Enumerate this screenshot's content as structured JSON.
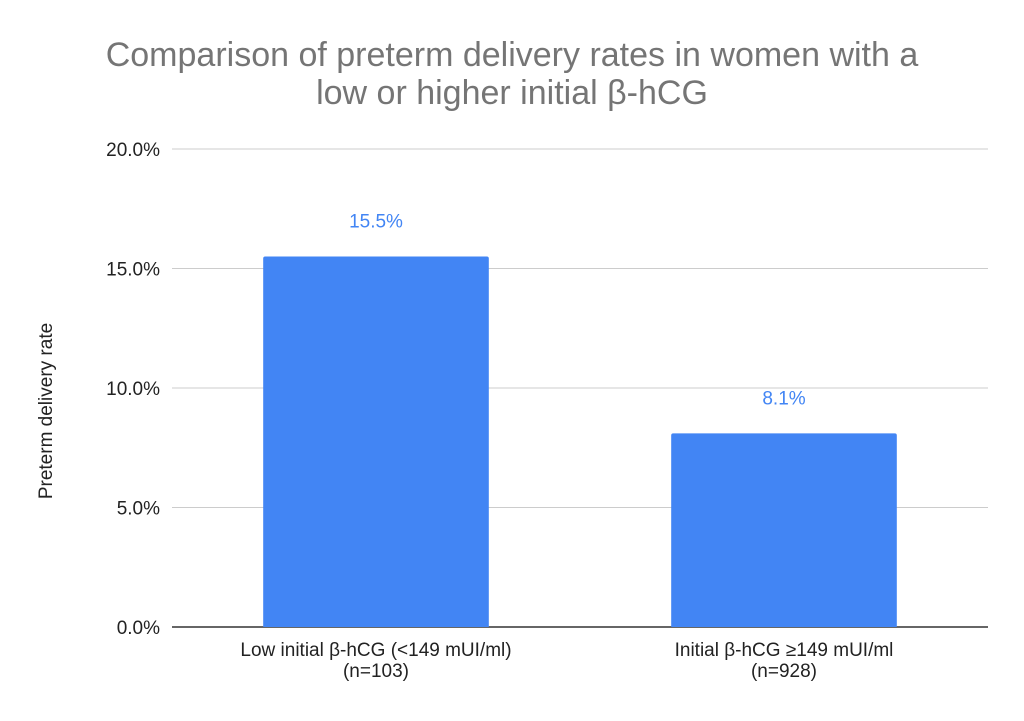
{
  "chart_data": {
    "type": "bar",
    "title_lines": [
      "Comparison of preterm delivery rates in women with a",
      "low or higher initial β-hCG"
    ],
    "xlabel": "",
    "ylabel": "Preterm delivery rate",
    "ylim": [
      0,
      20
    ],
    "y_ticks": [
      "0.0%",
      "5.0%",
      "10.0%",
      "15.0%",
      "20.0%"
    ],
    "y_tick_values": [
      0,
      5,
      10,
      15,
      20
    ],
    "categories": [
      [
        "Low initial β-hCG (<149 mUI/ml)",
        "(n=103)"
      ],
      [
        "Initial β-hCG ≥149 mUI/ml",
        "(n=928)"
      ]
    ],
    "values": [
      15.5,
      8.1
    ],
    "data_labels": [
      "15.5%",
      "8.1%"
    ],
    "grid": true,
    "legend": "none",
    "colors": {
      "bar": "#4285f4",
      "data_label": "#4285f4",
      "title": "#757575",
      "text": "#222222",
      "grid": "#cccccc"
    }
  }
}
